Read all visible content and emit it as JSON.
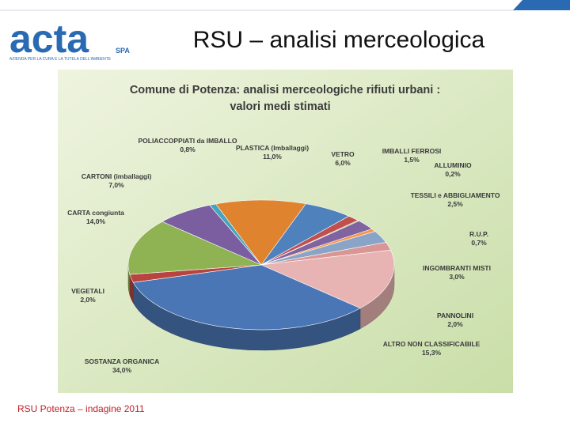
{
  "header": {
    "logo": "acta",
    "logo_suffix": "SPA",
    "logo_tagline": "AZIENDA PER LA CURA E LA TUTELA DELL'AMBIENTE",
    "title": "RSU – analisi merceologica"
  },
  "footer": {
    "text": "RSU Potenza – indagine 2011"
  },
  "chart_data": {
    "type": "pie",
    "title": "Comune di Potenza: analisi merceologiche rifiuti urbani :",
    "subtitle": "valori medi stimati",
    "categories": [
      "PLASTICA (Imballaggi)",
      "VETRO",
      "IMBALLI FERROSI",
      "ALLUMINIO",
      "TESSILI e ABBIGLIAMENTO",
      "R.U.P.",
      "INGOMBRANTI MISTI",
      "PANNOLINI",
      "ALTRO NON CLASSIFICABILE",
      "SOSTANZA ORGANICA",
      "VEGETALI",
      "CARTA congiunta",
      "CARTONI (imballaggi)",
      "POLIACCOPPIATI da IMBALLO"
    ],
    "values": [
      11.0,
      6.0,
      1.5,
      0.2,
      2.5,
      0.7,
      3.0,
      2.0,
      15.3,
      34.0,
      2.0,
      14.0,
      7.0,
      0.8
    ],
    "value_labels": [
      "11,0%",
      "6,0%",
      "1,5%",
      "0,2%",
      "2,5%",
      "0,7%",
      "3,0%",
      "2,0%",
      "15,3%",
      "34,0%",
      "2,0%",
      "14,0%",
      "7,0%",
      "0,8%"
    ],
    "colors": [
      "#e0832e",
      "#4f81bd",
      "#c0504d",
      "#9bbb59",
      "#8064a2",
      "#f79646",
      "#8aa4c8",
      "#d99694",
      "#e8b4b3",
      "#4a76b5",
      "#b9443f",
      "#8fb253",
      "#7a5ea0",
      "#45a5bf"
    ]
  }
}
